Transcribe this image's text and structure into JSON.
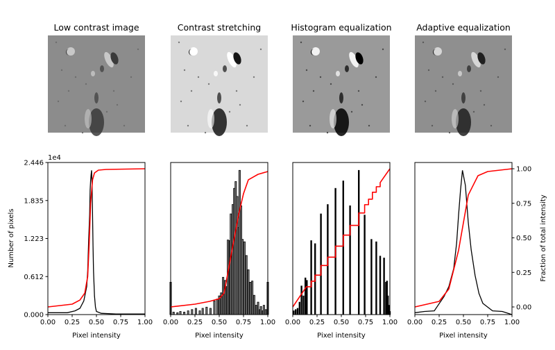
{
  "chart_data": [
    {
      "type": "image",
      "title": "Low contrast image",
      "palette": {
        "background": "#8c8c8c",
        "light": "#c8c8c8",
        "dark": "#3a3a3a",
        "speck": "#6e6e6e"
      }
    },
    {
      "type": "image",
      "title": "Contrast stretching",
      "palette": {
        "background": "#d9d9d9",
        "light": "#ffffff",
        "dark": "#151515",
        "speck": "#7a7a7a"
      }
    },
    {
      "type": "image",
      "title": "Histogram equalization",
      "palette": {
        "background": "#9a9a9a",
        "light": "#f2f2f2",
        "dark": "#000000",
        "speck": "#4a4a4a"
      }
    },
    {
      "type": "image",
      "title": "Adaptive equalization",
      "palette": {
        "background": "#8f8f8f",
        "light": "#d6d6d6",
        "dark": "#202020",
        "speck": "#5a5a5a"
      }
    },
    {
      "type": "line",
      "histogram_style": "step",
      "xlabel": "Pixel intensity",
      "ylabel": "Number of pixels",
      "y_offset_label": "1e4",
      "xlim": [
        0,
        1
      ],
      "ylim": [
        0,
        2.446
      ],
      "xticks": [
        "0.00",
        "0.25",
        "0.50",
        "0.75",
        "1.00"
      ],
      "yticks": [
        "0.000",
        "0.612",
        "1.223",
        "1.835",
        "2.446"
      ],
      "histogram": [
        [
          0,
          0.03
        ],
        [
          0.2,
          0.03
        ],
        [
          0.28,
          0.06
        ],
        [
          0.33,
          0.1
        ],
        [
          0.37,
          0.22
        ],
        [
          0.4,
          0.45
        ],
        [
          0.41,
          0.7
        ],
        [
          0.42,
          1.2
        ],
        [
          0.43,
          1.6
        ],
        [
          0.435,
          2.0
        ],
        [
          0.44,
          2.15
        ],
        [
          0.445,
          2.25
        ],
        [
          0.45,
          2.32
        ],
        [
          0.455,
          2.1
        ],
        [
          0.46,
          1.6
        ],
        [
          0.465,
          1.1
        ],
        [
          0.47,
          0.7
        ],
        [
          0.48,
          0.3
        ],
        [
          0.49,
          0.12
        ],
        [
          0.5,
          0.05
        ],
        [
          0.55,
          0.02
        ],
        [
          0.7,
          0.01
        ],
        [
          1,
          0.01
        ]
      ],
      "cdf": [
        [
          0,
          0.0
        ],
        [
          0.25,
          0.02
        ],
        [
          0.33,
          0.05
        ],
        [
          0.38,
          0.1
        ],
        [
          0.41,
          0.22
        ],
        [
          0.425,
          0.45
        ],
        [
          0.44,
          0.75
        ],
        [
          0.46,
          0.92
        ],
        [
          0.48,
          0.97
        ],
        [
          0.52,
          0.99
        ],
        [
          0.6,
          0.995
        ],
        [
          1,
          1.0
        ]
      ],
      "colors": {
        "histogram": "#000000",
        "cdf": "#ff0000"
      }
    },
    {
      "type": "bar",
      "xlabel": "Pixel intensity",
      "xlim": [
        0,
        1
      ],
      "ylim": [
        0,
        2.446
      ],
      "xticks": [
        "0.00",
        "0.25",
        "0.50",
        "0.75",
        "1.00"
      ],
      "histogram": [
        [
          0.0,
          0.52
        ],
        [
          0.03,
          0.04
        ],
        [
          0.07,
          0.03
        ],
        [
          0.1,
          0.05
        ],
        [
          0.14,
          0.04
        ],
        [
          0.18,
          0.06
        ],
        [
          0.22,
          0.08
        ],
        [
          0.26,
          0.1
        ],
        [
          0.3,
          0.06
        ],
        [
          0.33,
          0.1
        ],
        [
          0.37,
          0.12
        ],
        [
          0.41,
          0.1
        ],
        [
          0.45,
          0.22
        ],
        [
          0.48,
          0.25
        ],
        [
          0.5,
          0.3
        ],
        [
          0.52,
          0.35
        ],
        [
          0.54,
          0.6
        ],
        [
          0.56,
          0.55
        ],
        [
          0.58,
          0.45
        ],
        [
          0.59,
          1.2
        ],
        [
          0.61,
          1.19
        ],
        [
          0.62,
          1.62
        ],
        [
          0.64,
          1.77
        ],
        [
          0.655,
          2.03
        ],
        [
          0.67,
          2.14
        ],
        [
          0.685,
          1.9
        ],
        [
          0.7,
          1.4
        ],
        [
          0.71,
          2.32
        ],
        [
          0.725,
          1.75
        ],
        [
          0.74,
          1.21
        ],
        [
          0.76,
          1.17
        ],
        [
          0.78,
          0.95
        ],
        [
          0.8,
          0.72
        ],
        [
          0.82,
          0.52
        ],
        [
          0.84,
          0.54
        ],
        [
          0.86,
          0.31
        ],
        [
          0.88,
          0.15
        ],
        [
          0.9,
          0.2
        ],
        [
          0.92,
          0.08
        ],
        [
          0.93,
          0.13
        ],
        [
          0.95,
          0.06
        ],
        [
          0.96,
          0.15
        ],
        [
          0.98,
          0.08
        ],
        [
          1.0,
          0.52
        ]
      ],
      "cdf": [
        [
          0,
          0.0
        ],
        [
          0.25,
          0.02
        ],
        [
          0.4,
          0.04
        ],
        [
          0.5,
          0.06
        ],
        [
          0.55,
          0.1
        ],
        [
          0.6,
          0.29
        ],
        [
          0.65,
          0.48
        ],
        [
          0.7,
          0.67
        ],
        [
          0.75,
          0.82
        ],
        [
          0.8,
          0.92
        ],
        [
          0.9,
          0.96
        ],
        [
          1,
          0.98
        ]
      ],
      "colors": {
        "histogram": "#000000",
        "bar_fill": "#808080",
        "cdf": "#ff0000"
      }
    },
    {
      "type": "bar",
      "xlabel": "Pixel intensity",
      "xlim": [
        0,
        1
      ],
      "ylim": [
        0,
        2.446
      ],
      "xticks": [
        "0.00",
        "0.25",
        "0.50",
        "0.75",
        "1.00"
      ],
      "histogram": [
        [
          0.01,
          0.06
        ],
        [
          0.03,
          0.08
        ],
        [
          0.05,
          0.1
        ],
        [
          0.07,
          0.2
        ],
        [
          0.09,
          0.46
        ],
        [
          0.11,
          0.3
        ],
        [
          0.13,
          0.59
        ],
        [
          0.145,
          0.55
        ],
        [
          0.19,
          1.19
        ],
        [
          0.23,
          1.14
        ],
        [
          0.29,
          1.62
        ],
        [
          0.36,
          1.77
        ],
        [
          0.44,
          2.03
        ],
        [
          0.52,
          2.15
        ],
        [
          0.59,
          1.75
        ],
        [
          0.68,
          2.32
        ],
        [
          0.74,
          1.6
        ],
        [
          0.81,
          1.21
        ],
        [
          0.86,
          1.17
        ],
        [
          0.9,
          0.94
        ],
        [
          0.94,
          0.91
        ],
        [
          0.96,
          0.52
        ],
        [
          0.97,
          0.54
        ],
        [
          0.98,
          0.3
        ],
        [
          0.99,
          0.15
        ],
        [
          1.0,
          0.05
        ]
      ],
      "cdf_step": [
        [
          0,
          0.0
        ],
        [
          0.14,
          0.146
        ],
        [
          0.19,
          0.186
        ],
        [
          0.23,
          0.23
        ],
        [
          0.29,
          0.3
        ],
        [
          0.36,
          0.36
        ],
        [
          0.44,
          0.44
        ],
        [
          0.52,
          0.52
        ],
        [
          0.59,
          0.59
        ],
        [
          0.68,
          0.68
        ],
        [
          0.74,
          0.74
        ],
        [
          0.78,
          0.78
        ],
        [
          0.82,
          0.83
        ],
        [
          0.86,
          0.87
        ],
        [
          0.9,
          0.9
        ],
        [
          1,
          1.0
        ]
      ],
      "colors": {
        "histogram": "#000000",
        "cdf": "#ff0000"
      }
    },
    {
      "type": "line",
      "histogram_style": "step",
      "xlabel": "Pixel intensity",
      "ylabel_right": "Fraction of total intensity",
      "xlim": [
        0,
        1
      ],
      "ylim": [
        0,
        2.446
      ],
      "ylim_right": [
        -0.05,
        1.05
      ],
      "xticks": [
        "0.00",
        "0.25",
        "0.50",
        "0.75",
        "1.00"
      ],
      "yticks_right": [
        "0.00",
        "0.25",
        "0.50",
        "0.75",
        "1.00"
      ],
      "histogram": [
        [
          0,
          0.03
        ],
        [
          0.1,
          0.05
        ],
        [
          0.2,
          0.06
        ],
        [
          0.3,
          0.29
        ],
        [
          0.35,
          0.45
        ],
        [
          0.4,
          0.74
        ],
        [
          0.43,
          1.15
        ],
        [
          0.45,
          1.6
        ],
        [
          0.47,
          2.0
        ],
        [
          0.49,
          2.32
        ],
        [
          0.52,
          2.08
        ],
        [
          0.55,
          1.48
        ],
        [
          0.58,
          1.04
        ],
        [
          0.62,
          0.63
        ],
        [
          0.66,
          0.34
        ],
        [
          0.7,
          0.18
        ],
        [
          0.8,
          0.06
        ],
        [
          0.9,
          0.05
        ],
        [
          1.0,
          0.0
        ]
      ],
      "cdf": [
        [
          0,
          0.0
        ],
        [
          0.25,
          0.04
        ],
        [
          0.35,
          0.13
        ],
        [
          0.45,
          0.41
        ],
        [
          0.5,
          0.61
        ],
        [
          0.55,
          0.81
        ],
        [
          0.65,
          0.95
        ],
        [
          0.75,
          0.98
        ],
        [
          1,
          1.0
        ]
      ],
      "colors": {
        "histogram": "#000000",
        "cdf": "#ff0000"
      }
    }
  ]
}
